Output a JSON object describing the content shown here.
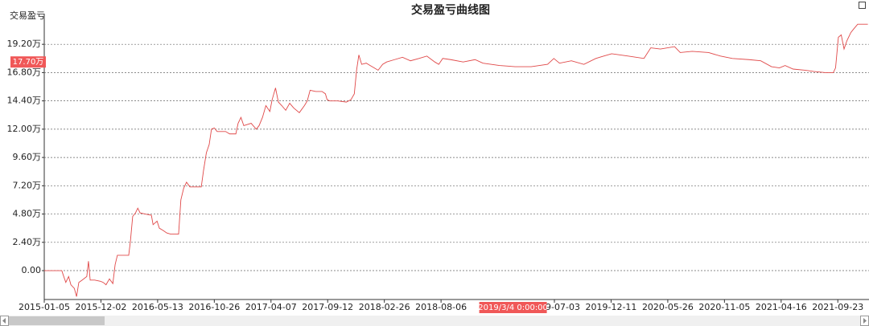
{
  "chart_data": {
    "type": "line",
    "title": "交易盈亏曲线图",
    "y_label": "交易盈亏",
    "xlim": [
      0,
      14.55
    ],
    "xticks": [
      {
        "value": 0,
        "label": "2015-01-05"
      },
      {
        "value": 1,
        "label": "2015-12-02"
      },
      {
        "value": 2,
        "label": "2016-05-13"
      },
      {
        "value": 3,
        "label": "2016-10-26"
      },
      {
        "value": 4,
        "label": "2017-04-07"
      },
      {
        "value": 5,
        "label": "2017-09-12"
      },
      {
        "value": 6,
        "label": "2018-02-26"
      },
      {
        "value": 7,
        "label": "2018-08-06"
      },
      {
        "value": 9,
        "label": "2019-07-03"
      },
      {
        "value": 10,
        "label": "2019-12-11"
      },
      {
        "value": 11,
        "label": "2020-05-26"
      },
      {
        "value": 12,
        "label": "2020-11-05"
      },
      {
        "value": 13,
        "label": "2021-04-16"
      },
      {
        "value": 14,
        "label": "2021-09-23"
      }
    ],
    "ylim": [
      -2.45,
      21.8
    ],
    "yticks": [
      {
        "value": 0,
        "label": "0.00"
      },
      {
        "value": 2.4,
        "label": "2.40万"
      },
      {
        "value": 4.8,
        "label": "4.80万"
      },
      {
        "value": 7.2,
        "label": "7.20万"
      },
      {
        "value": 9.6,
        "label": "9.60万"
      },
      {
        "value": 12,
        "label": "12.00万"
      },
      {
        "value": 14.4,
        "label": "14.40万"
      },
      {
        "value": 16.8,
        "label": "16.80万"
      },
      {
        "value": 19.2,
        "label": "19.20万"
      }
    ],
    "grid": true,
    "cursor_y": {
      "value": 17.7,
      "label": "17.70万"
    },
    "cursor_x": {
      "value": 8.27,
      "label": "2019/3/4 0:00:00"
    },
    "series": [
      {
        "color": "#e04848",
        "x": [
          0,
          0.31,
          0.33,
          0.38,
          0.43,
          0.47,
          0.53,
          0.57,
          0.61,
          0.67,
          0.75,
          0.78,
          0.81,
          0.89,
          0.99,
          1.04,
          1.09,
          1.15,
          1.21,
          1.25,
          1.29,
          1.38,
          1.49,
          1.52,
          1.56,
          1.61,
          1.65,
          1.69,
          1.78,
          1.89,
          1.92,
          1.99,
          2.03,
          2.1,
          2.16,
          2.23,
          2.37,
          2.41,
          2.46,
          2.51,
          2.57,
          2.7,
          2.77,
          2.81,
          2.86,
          2.91,
          2.95,
          3.0,
          3.05,
          3.2,
          3.27,
          3.38,
          3.42,
          3.47,
          3.52,
          3.65,
          3.74,
          3.79,
          3.85,
          3.91,
          3.98,
          4.02,
          4.08,
          4.13,
          4.19,
          4.26,
          4.33,
          4.4,
          4.5,
          4.59,
          4.64,
          4.69,
          4.79,
          4.9,
          4.96,
          4.99,
          5.04,
          5.18,
          5.33,
          5.41,
          5.47,
          5.51,
          5.55,
          5.6,
          5.68,
          5.75,
          5.82,
          5.89,
          5.97,
          6.04,
          6.18,
          6.32,
          6.46,
          6.61,
          6.75,
          6.89,
          6.96,
          7.03,
          7.17,
          7.39,
          7.6,
          7.74,
          8.03,
          8.31,
          8.59,
          8.88,
          8.99,
          9.09,
          9.3,
          9.52,
          9.73,
          9.87,
          10.01,
          10.3,
          10.58,
          10.7,
          10.87,
          11.12,
          11.22,
          11.43,
          11.72,
          11.93,
          12.14,
          12.43,
          12.64,
          12.83,
          12.97,
          13.07,
          13.21,
          13.42,
          13.57,
          13.78,
          13.92,
          13.96,
          14.01,
          14.06,
          14.11,
          14.16,
          14.23,
          14.28,
          14.35,
          14.42,
          14.53
        ],
        "values": [
          0,
          0,
          -0.3,
          -1,
          -0.5,
          -1.2,
          -1.5,
          -2.2,
          -1,
          -0.8,
          -0.5,
          0.8,
          -0.8,
          -0.8,
          -0.9,
          -1.0,
          -1.2,
          -0.7,
          -1.1,
          0.5,
          1.3,
          1.3,
          1.3,
          2.5,
          4.6,
          4.9,
          5.3,
          4.9,
          4.8,
          4.7,
          3.9,
          4.2,
          3.6,
          3.4,
          3.2,
          3.1,
          3.1,
          6.0,
          7.0,
          7.5,
          7.1,
          7.1,
          7.1,
          8.5,
          10,
          10.7,
          12.0,
          12.1,
          11.8,
          11.8,
          11.6,
          11.6,
          12.5,
          13.0,
          12.3,
          12.5,
          12.0,
          12.3,
          13.0,
          14.0,
          13.5,
          14.5,
          15.5,
          14.3,
          14.0,
          13.6,
          14.2,
          13.8,
          13.4,
          14.0,
          14.4,
          15.3,
          15.2,
          15.2,
          15.0,
          14.5,
          14.4,
          14.4,
          14.3,
          14.5,
          15.0,
          17.0,
          18.3,
          17.5,
          17.6,
          17.4,
          17.2,
          17.0,
          17.5,
          17.7,
          17.9,
          18.1,
          17.8,
          18.0,
          18.2,
          17.7,
          17.5,
          18.0,
          17.9,
          17.7,
          17.9,
          17.6,
          17.4,
          17.3,
          17.3,
          17.5,
          18.0,
          17.6,
          17.8,
          17.5,
          18.0,
          18.2,
          18.4,
          18.2,
          18.0,
          18.9,
          18.8,
          19.0,
          18.5,
          18.6,
          18.5,
          18.2,
          18.0,
          17.9,
          17.8,
          17.3,
          17.2,
          17.4,
          17.1,
          17.0,
          16.9,
          16.8,
          16.8,
          17.2,
          19.8,
          20.0,
          18.8,
          19.5,
          20.2,
          20.5,
          20.9,
          20.9,
          20.9
        ]
      }
    ]
  }
}
